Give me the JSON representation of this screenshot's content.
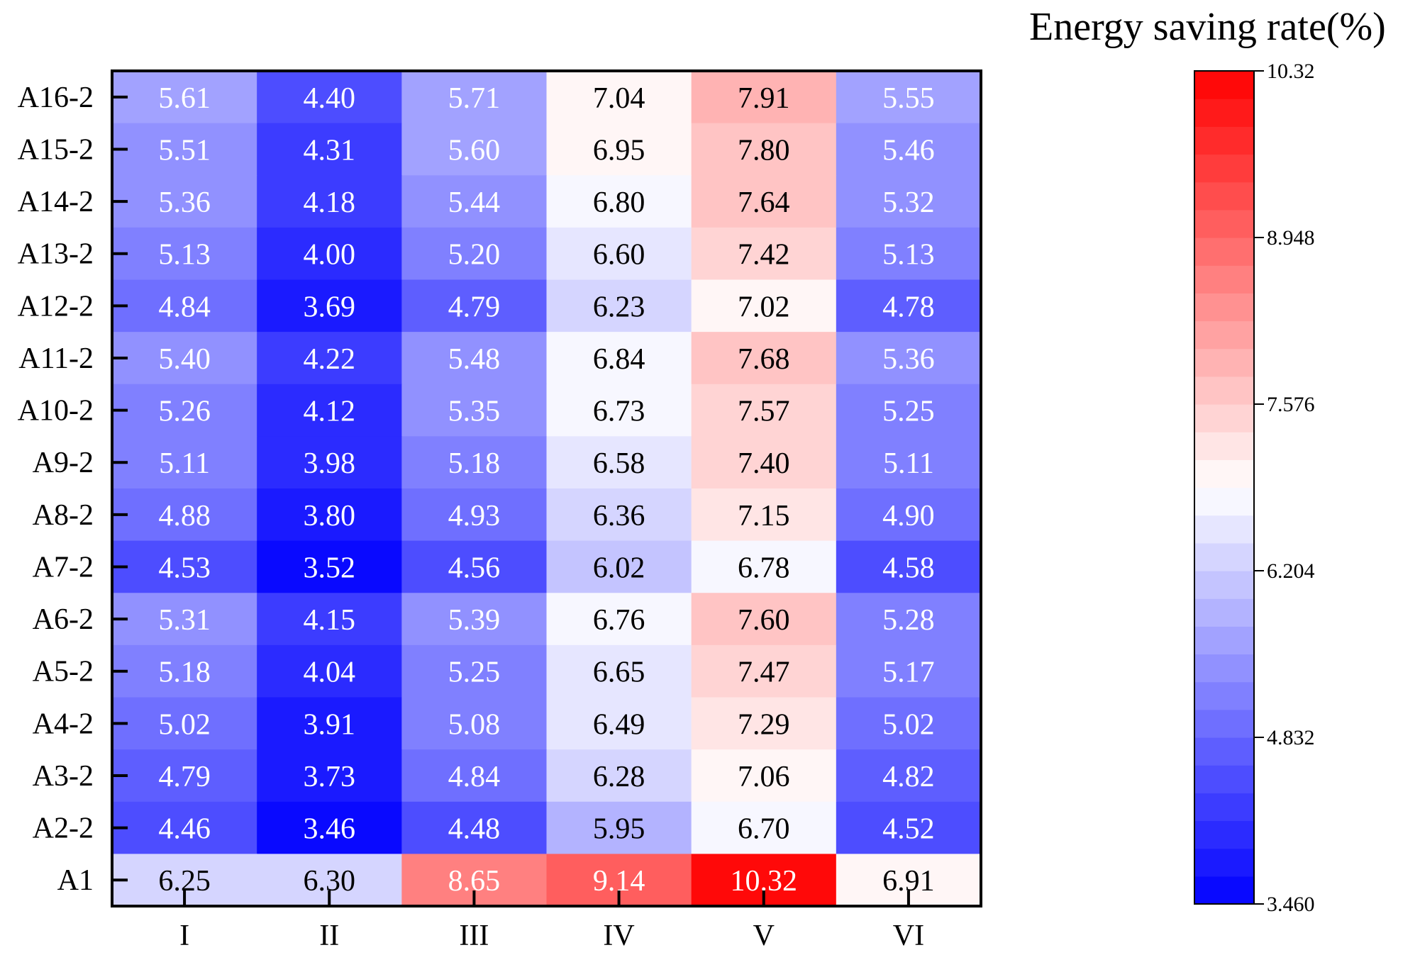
{
  "chart_data": {
    "type": "heatmap",
    "legend_title": "Energy saving rate(%)",
    "x_categories": [
      "I",
      "II",
      "III",
      "IV",
      "V",
      "VI"
    ],
    "y_categories": [
      "A16-2",
      "A15-2",
      "A14-2",
      "A13-2",
      "A12-2",
      "A11-2",
      "A10-2",
      "A9-2",
      "A8-2",
      "A7-2",
      "A6-2",
      "A5-2",
      "A4-2",
      "A3-2",
      "A2-2",
      "A1"
    ],
    "values": [
      [
        "5.61",
        "4.40",
        "5.71",
        "7.04",
        "7.91",
        "5.55"
      ],
      [
        "5.51",
        "4.31",
        "5.60",
        "6.95",
        "7.80",
        "5.46"
      ],
      [
        "5.36",
        "4.18",
        "5.44",
        "6.80",
        "7.64",
        "5.32"
      ],
      [
        "5.13",
        "4.00",
        "5.20",
        "6.60",
        "7.42",
        "5.13"
      ],
      [
        "4.84",
        "3.69",
        "4.79",
        "6.23",
        "7.02",
        "4.78"
      ],
      [
        "5.40",
        "4.22",
        "5.48",
        "6.84",
        "7.68",
        "5.36"
      ],
      [
        "5.26",
        "4.12",
        "5.35",
        "6.73",
        "7.57",
        "5.25"
      ],
      [
        "5.11",
        "3.98",
        "5.18",
        "6.58",
        "7.40",
        "5.11"
      ],
      [
        "4.88",
        "3.80",
        "4.93",
        "6.36",
        "7.15",
        "4.90"
      ],
      [
        "4.53",
        "3.52",
        "4.56",
        "6.02",
        "6.78",
        "4.58"
      ],
      [
        "5.31",
        "4.15",
        "5.39",
        "6.76",
        "7.60",
        "5.28"
      ],
      [
        "5.18",
        "4.04",
        "5.25",
        "6.65",
        "7.47",
        "5.17"
      ],
      [
        "5.02",
        "3.91",
        "5.08",
        "6.49",
        "7.29",
        "5.02"
      ],
      [
        "4.79",
        "3.73",
        "4.84",
        "6.28",
        "7.06",
        "4.82"
      ],
      [
        "4.46",
        "3.46",
        "4.48",
        "5.95",
        "6.70",
        "4.52"
      ],
      [
        "6.25",
        "6.30",
        "8.65",
        "9.14",
        "10.32",
        "6.91"
      ]
    ],
    "color_scale": {
      "min": 3.46,
      "max": 10.32,
      "levels": 30,
      "low_color": "#0000ff",
      "mid_color": "#ffffff",
      "high_color": "#ff0000",
      "ticks": [
        "10.32",
        "8.948",
        "7.576",
        "6.204",
        "4.832",
        "3.460"
      ]
    }
  }
}
